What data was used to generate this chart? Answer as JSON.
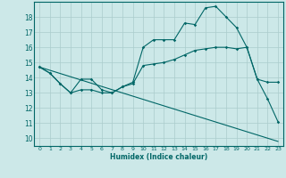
{
  "title": "",
  "xlabel": "Humidex (Indice chaleur)",
  "bg_color": "#cce8e8",
  "grid_color": "#aacccc",
  "line_color": "#006666",
  "xlim": [
    -0.5,
    23.5
  ],
  "ylim": [
    9.5,
    19.0
  ],
  "yticks": [
    10,
    11,
    12,
    13,
    14,
    15,
    16,
    17,
    18
  ],
  "xticks": [
    0,
    1,
    2,
    3,
    4,
    5,
    6,
    7,
    8,
    9,
    10,
    11,
    12,
    13,
    14,
    15,
    16,
    17,
    18,
    19,
    20,
    21,
    22,
    23
  ],
  "lines": [
    {
      "x": [
        0,
        1,
        2,
        3,
        4,
        5,
        6,
        7,
        8,
        9,
        10,
        11,
        12,
        13,
        14,
        15,
        16,
        17,
        18,
        19,
        20,
        21,
        22,
        23
      ],
      "y": [
        14.7,
        14.3,
        13.6,
        13.0,
        13.9,
        13.9,
        13.2,
        13.0,
        13.4,
        13.7,
        16.0,
        16.5,
        16.5,
        16.5,
        17.6,
        17.5,
        18.6,
        18.7,
        18.0,
        17.3,
        16.0,
        13.9,
        12.6,
        11.1
      ]
    },
    {
      "x": [
        0,
        1,
        2,
        3,
        4,
        5,
        6,
        7,
        8,
        9,
        10,
        11,
        12,
        13,
        14,
        15,
        16,
        17,
        18,
        19,
        20,
        21,
        22,
        23
      ],
      "y": [
        14.7,
        14.3,
        13.6,
        13.0,
        13.2,
        13.2,
        13.0,
        13.0,
        13.4,
        13.6,
        14.8,
        14.9,
        15.0,
        15.2,
        15.5,
        15.8,
        15.9,
        16.0,
        16.0,
        15.9,
        16.0,
        13.9,
        13.7,
        13.7
      ]
    },
    {
      "x": [
        0,
        23
      ],
      "y": [
        14.7,
        9.8
      ],
      "no_markers": true
    }
  ]
}
